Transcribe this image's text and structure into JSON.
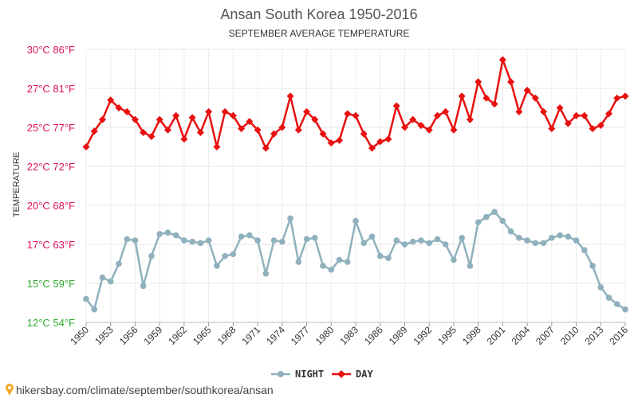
{
  "chart_data": {
    "type": "line",
    "title": "Ansan South Korea 1950-2016",
    "subtitle": "SEPTEMBER AVERAGE TEMPERATURE",
    "ylabel": "TEMPERATURE",
    "ylim": [
      12,
      30
    ],
    "y_ticks": [
      {
        "value": 12,
        "label": "12°C 54°F",
        "color": "#2eaa2e"
      },
      {
        "value": 15,
        "label": "15°C 59°F",
        "color": "#2eaa2e"
      },
      {
        "value": 17,
        "label": "17°C 63°F",
        "color": "#e0115f"
      },
      {
        "value": 20,
        "label": "20°C 68°F",
        "color": "#e0115f"
      },
      {
        "value": 22,
        "label": "22°C 72°F",
        "color": "#e0115f"
      },
      {
        "value": 25,
        "label": "25°C 77°F",
        "color": "#e0115f"
      },
      {
        "value": 27,
        "label": "27°C 81°F",
        "color": "#e0115f"
      },
      {
        "value": 30,
        "label": "30°C 86°F",
        "color": "#e0115f"
      }
    ],
    "x_tick_labels": [
      "1950",
      "1953",
      "1956",
      "1959",
      "1962",
      "1965",
      "1968",
      "1971",
      "1974",
      "1977",
      "1980",
      "1983",
      "1986",
      "1989",
      "1992",
      "1995",
      "1998",
      "2001",
      "2004",
      "2007",
      "2010",
      "2013",
      "2016"
    ],
    "x": [
      1950,
      1951,
      1952,
      1953,
      1954,
      1955,
      1956,
      1957,
      1958,
      1959,
      1960,
      1961,
      1962,
      1963,
      1964,
      1965,
      1966,
      1967,
      1968,
      1969,
      1970,
      1971,
      1972,
      1973,
      1974,
      1975,
      1976,
      1977,
      1978,
      1979,
      1980,
      1981,
      1982,
      1983,
      1984,
      1985,
      1986,
      1987,
      1988,
      1989,
      1990,
      1991,
      1992,
      1993,
      1994,
      1995,
      1996,
      1997,
      1998,
      1999,
      2000,
      2001,
      2002,
      2003,
      2004,
      2005,
      2006,
      2007,
      2008,
      2009,
      2010,
      2011,
      2012,
      2013,
      2014,
      2015,
      2016
    ],
    "series": [
      {
        "name": "NIGHT",
        "color": "#8fb1bd",
        "values": [
          13.8,
          13.0,
          15.3,
          15.1,
          16.0,
          17.4,
          17.3,
          14.8,
          16.4,
          17.8,
          17.9,
          17.7,
          17.3,
          17.2,
          17.1,
          17.3,
          15.9,
          16.4,
          16.5,
          17.6,
          17.7,
          17.3,
          15.5,
          17.3,
          17.2,
          19.0,
          16.1,
          17.4,
          17.5,
          15.9,
          15.7,
          16.2,
          16.1,
          18.8,
          17.1,
          17.6,
          16.4,
          16.3,
          17.3,
          17.0,
          17.2,
          17.3,
          17.1,
          17.4,
          17.0,
          16.2,
          17.5,
          15.9,
          18.7,
          19.1,
          19.5,
          18.8,
          18.0,
          17.5,
          17.3,
          17.1,
          17.1,
          17.5,
          17.7,
          17.6,
          17.3,
          16.7,
          15.9,
          14.7,
          13.9,
          13.4,
          13.0
        ]
      },
      {
        "name": "DAY",
        "color": "#e81010",
        "values": [
          23.5,
          24.7,
          25.4,
          26.4,
          26.0,
          25.8,
          25.4,
          24.6,
          24.3,
          25.4,
          24.8,
          25.6,
          24.1,
          25.5,
          24.6,
          25.8,
          23.5,
          25.8,
          25.6,
          24.9,
          25.3,
          24.8,
          23.4,
          24.5,
          25.0,
          26.6,
          24.8,
          25.8,
          25.4,
          24.5,
          23.8,
          24.0,
          25.7,
          25.6,
          24.5,
          23.4,
          23.9,
          24.1,
          26.1,
          25.0,
          25.4,
          25.1,
          24.8,
          25.6,
          25.8,
          24.8,
          26.6,
          25.4,
          27.5,
          26.5,
          26.2,
          29.2,
          27.5,
          25.8,
          26.9,
          26.5,
          25.8,
          24.9,
          26.0,
          25.2,
          25.6,
          25.6,
          24.9,
          25.1,
          25.7,
          26.5,
          26.6
        ]
      }
    ],
    "grid": true,
    "legend": "bottom-center"
  },
  "footer": {
    "url": "hikersbay.com/climate/september/southkorea/ansan",
    "pin_color": "#f5a623"
  }
}
